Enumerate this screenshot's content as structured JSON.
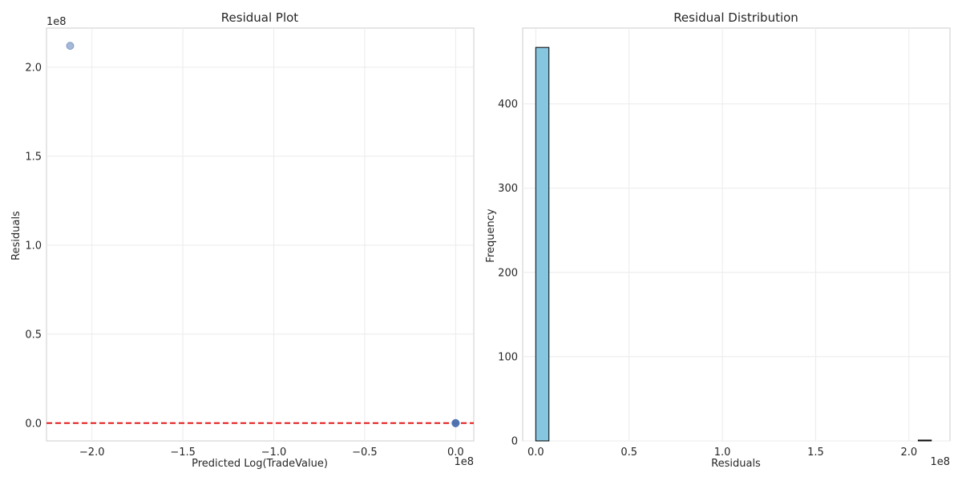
{
  "chart_data": [
    {
      "type": "scatter",
      "title": "Residual Plot",
      "xlabel": "Predicted Log(TradeValue)",
      "ylabel": "Residuals",
      "x_offset_label": "1e8",
      "y_offset_label": "1e8",
      "xlim": [
        -2.25,
        0.1
      ],
      "ylim": [
        -0.1,
        2.22
      ],
      "x_scale_note": "values in units of 1e8",
      "xticks": [
        -2.0,
        -1.5,
        -1.0,
        -0.5,
        0.0
      ],
      "xtick_labels": [
        "−2.0",
        "−1.5",
        "−1.0",
        "−0.5",
        "0.0"
      ],
      "yticks": [
        0.0,
        0.5,
        1.0,
        1.5,
        2.0
      ],
      "ytick_labels": [
        "0.0",
        "0.5",
        "1.0",
        "1.5",
        "2.0"
      ],
      "grid": true,
      "points": [
        {
          "x": -2.12,
          "y": 2.12
        },
        {
          "x": 0.0,
          "y": 0.0
        },
        {
          "x": 0.0,
          "y": 0.0
        },
        {
          "x": 0.0,
          "y": 0.0
        },
        {
          "x": 0.0,
          "y": 0.0
        },
        {
          "x": 0.0,
          "y": 0.0
        }
      ],
      "reference_line": {
        "y": 0,
        "style": "dashed",
        "color": "#e31a1c"
      },
      "point_color": "#4c72b0"
    },
    {
      "type": "bar",
      "title": "Residual Distribution",
      "xlabel": "Residuals",
      "ylabel": "Frequency",
      "x_offset_label": "1e8",
      "xlim": [
        -0.07,
        2.22
      ],
      "ylim": [
        0,
        490
      ],
      "xticks": [
        0.0,
        0.5,
        1.0,
        1.5,
        2.0
      ],
      "xtick_labels": [
        "0.0",
        "0.5",
        "1.0",
        "1.5",
        "2.0"
      ],
      "yticks": [
        0,
        100,
        200,
        300,
        400
      ],
      "ytick_labels": [
        "0",
        "100",
        "200",
        "300",
        "400"
      ],
      "grid": true,
      "bins": [
        {
          "x0": 0.0,
          "x1": 0.0707,
          "count": 467
        },
        {
          "x0": 2.05,
          "x1": 2.12,
          "count": 1
        }
      ],
      "bar_color": "#87c6df",
      "edge_color": "#000000"
    }
  ]
}
